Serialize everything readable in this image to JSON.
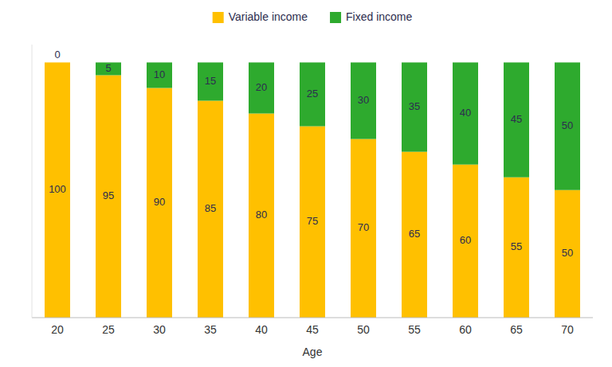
{
  "chart_data": {
    "type": "bar",
    "stacked": true,
    "x_label": "Age",
    "categories": [
      "20",
      "25",
      "30",
      "35",
      "40",
      "45",
      "50",
      "55",
      "60",
      "65",
      "70"
    ],
    "series": [
      {
        "name": "Variable income",
        "color": "#FFC000",
        "values": [
          100,
          95,
          90,
          85,
          80,
          75,
          70,
          65,
          60,
          55,
          50
        ]
      },
      {
        "name": "Fixed income",
        "color": "#2EAA2E",
        "values": [
          0,
          5,
          10,
          15,
          20,
          25,
          30,
          35,
          40,
          45,
          50
        ]
      }
    ],
    "ylim": [
      0,
      107
    ],
    "grid": false,
    "legend": "top",
    "data_labels": true,
    "tick_labels": "x"
  }
}
